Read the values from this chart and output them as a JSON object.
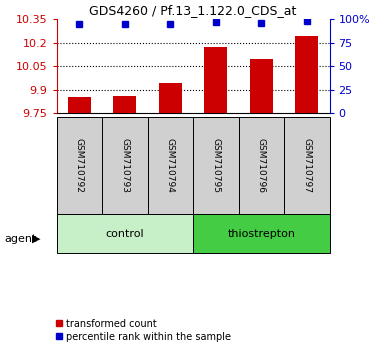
{
  "title": "GDS4260 / Pf.13_1.122.0_CDS_at",
  "samples": [
    "GSM710792",
    "GSM710793",
    "GSM710794",
    "GSM710795",
    "GSM710796",
    "GSM710797"
  ],
  "bar_values": [
    9.855,
    9.858,
    9.945,
    10.175,
    10.095,
    10.245
  ],
  "percentile_values": [
    95,
    95,
    95,
    97,
    96,
    98
  ],
  "groups": [
    {
      "label": "control",
      "indices": [
        0,
        1,
        2
      ],
      "color": "#c8f0c8"
    },
    {
      "label": "thiostrepton",
      "indices": [
        3,
        4,
        5
      ],
      "color": "#44cc44"
    }
  ],
  "ylim_left": [
    9.75,
    10.35
  ],
  "ylim_right": [
    0,
    100
  ],
  "yticks_left": [
    9.75,
    9.9,
    10.05,
    10.2,
    10.35
  ],
  "yticks_left_labels": [
    "9.75",
    "9.9",
    "10.05",
    "10.2",
    "10.35"
  ],
  "yticks_right": [
    0,
    25,
    50,
    75,
    100
  ],
  "yticks_right_labels": [
    "0",
    "25",
    "50",
    "75",
    "100%"
  ],
  "bar_color": "#cc0000",
  "dot_color": "#0000cc",
  "bar_width": 0.5,
  "agent_label": "agent",
  "left_axis_color": "#cc0000",
  "right_axis_color": "#0000cc",
  "tick_label_color_left": "#cc0000",
  "tick_label_color_right": "#0000cc",
  "legend_bar_label": "transformed count",
  "legend_dot_label": "percentile rank within the sample",
  "sample_box_color": "#d0d0d0",
  "title_fontsize": 9,
  "tick_fontsize": 8,
  "sample_fontsize": 6.5,
  "group_fontsize": 8,
  "legend_fontsize": 7
}
